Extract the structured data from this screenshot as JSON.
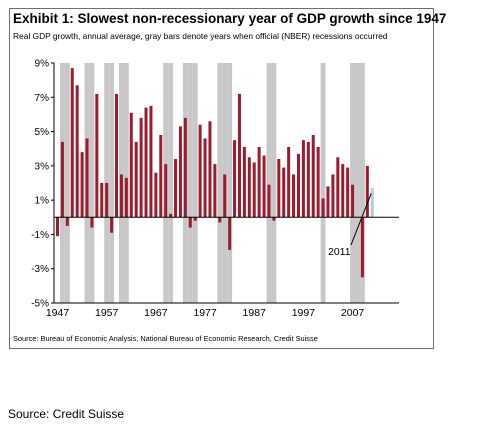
{
  "figure": {
    "title": "Exhibit 1: Slowest non-recessionary year of GDP growth since 1947",
    "subtitle": "Real GDP growth, annual average, gray bars denote years when official (NBER) recessions occurred",
    "source_note": "Source: Bureau of Economic Analysis, National Bureau of Economic Research, Credit Suisse"
  },
  "footer": {
    "source": "Source: Credit Suisse"
  },
  "chart_data": {
    "type": "bar",
    "title": "Exhibit 1: Slowest non-recessionary year of GDP growth since 1947",
    "subtitle": "Real GDP growth, annual average, gray bars denote years when official (NBER) recessions occurred",
    "xlabel": "",
    "ylabel": "",
    "ylim": [
      -5,
      9
    ],
    "yticks": [
      -5,
      -3,
      -1,
      1,
      3,
      5,
      7,
      9
    ],
    "ytick_labels": [
      "-5%",
      "-3%",
      "-1%",
      "1%",
      "3%",
      "5%",
      "7%",
      "9%"
    ],
    "xticks": [
      1947,
      1957,
      1967,
      1977,
      1987,
      1997,
      2007
    ],
    "grid": false,
    "colors": {
      "bars": "#9b1c2e",
      "recession_shading": "#c8c8c8",
      "highlight_bar": "#b8c9dc"
    },
    "recession_years": [
      1948,
      1949,
      1953,
      1954,
      1957,
      1958,
      1960,
      1961,
      1969,
      1970,
      1973,
      1974,
      1975,
      1980,
      1981,
      1982,
      1990,
      1991,
      2001,
      2007,
      2008,
      2009
    ],
    "series": [
      {
        "years": [
          1947,
          1948,
          1949,
          1950,
          1951,
          1952,
          1953,
          1954,
          1955,
          1956,
          1957,
          1958,
          1959,
          1960,
          1961,
          1962,
          1963,
          1964,
          1965,
          1966,
          1967,
          1968,
          1969,
          1970,
          1971,
          1972,
          1973,
          1974,
          1975,
          1976,
          1977,
          1978,
          1979,
          1980,
          1981,
          1982,
          1983,
          1984,
          1985,
          1986,
          1987,
          1988,
          1989,
          1990,
          1991,
          1992,
          1993,
          1994,
          1995,
          1996,
          1997,
          1998,
          1999,
          2000,
          2001,
          2002,
          2003,
          2004,
          2005,
          2006,
          2007,
          2008,
          2009,
          2010
        ],
        "values": [
          -1.1,
          4.4,
          -0.5,
          8.7,
          7.7,
          3.8,
          4.6,
          -0.6,
          7.2,
          2.0,
          2.0,
          -0.9,
          7.2,
          2.5,
          2.3,
          6.1,
          4.4,
          5.8,
          6.4,
          6.5,
          2.6,
          4.8,
          3.1,
          0.2,
          3.4,
          5.3,
          5.8,
          -0.6,
          -0.2,
          5.4,
          4.6,
          5.6,
          3.1,
          -0.3,
          2.5,
          -1.9,
          4.5,
          7.2,
          4.1,
          3.5,
          3.2,
          4.1,
          3.6,
          1.9,
          -0.2,
          3.4,
          2.9,
          4.1,
          2.5,
          3.7,
          4.5,
          4.4,
          4.8,
          4.1,
          1.1,
          1.8,
          2.5,
          3.5,
          3.1,
          2.9,
          1.9,
          0.0,
          -3.5,
          3.0
        ]
      },
      {
        "years": [
          2011
        ],
        "values": [
          1.7
        ]
      }
    ],
    "annotations": [
      {
        "text": "2011",
        "year": 2011
      }
    ]
  }
}
